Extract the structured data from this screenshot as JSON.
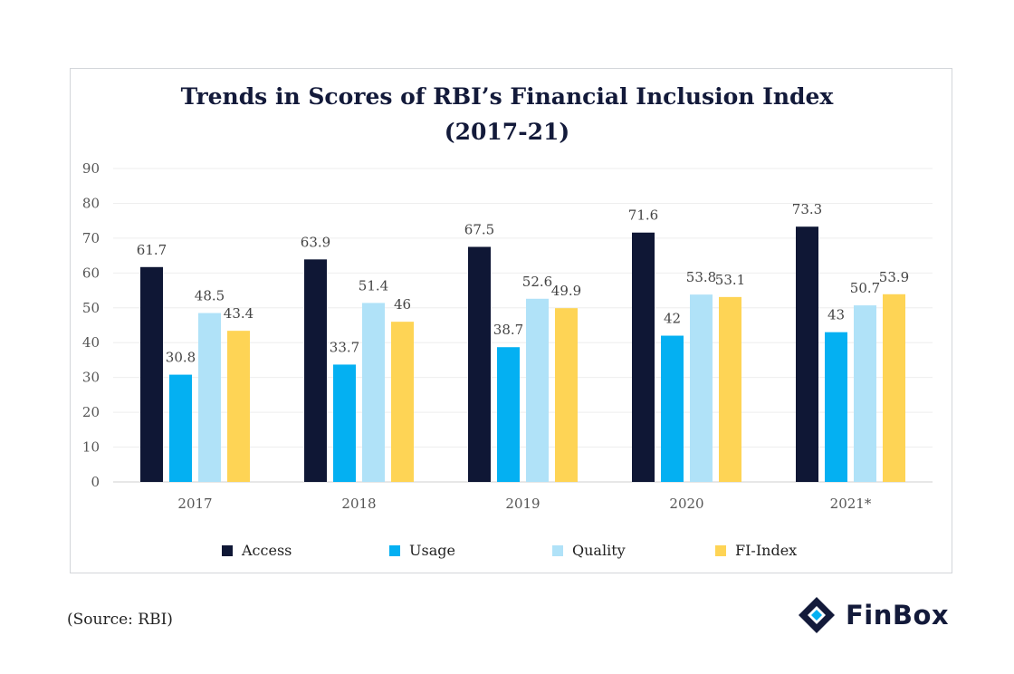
{
  "chart_data": {
    "type": "bar",
    "title": "Trends in Scores of RBI’s Financial Inclusion Index",
    "subtitle": "(2017-21)",
    "categories": [
      "2017",
      "2018",
      "2019",
      "2020",
      "2021*"
    ],
    "series": [
      {
        "name": "Access",
        "color": "#0f1735",
        "values": [
          61.7,
          63.9,
          67.5,
          71.6,
          73.3
        ]
      },
      {
        "name": "Usage",
        "color": "#04b0f2",
        "values": [
          30.8,
          33.7,
          38.7,
          42,
          43
        ]
      },
      {
        "name": "Quality",
        "color": "#b0e2f8",
        "values": [
          48.5,
          51.4,
          52.6,
          53.8,
          50.7
        ]
      },
      {
        "name": "FI-Index",
        "color": "#fed455",
        "values": [
          43.4,
          46,
          49.9,
          53.1,
          53.9
        ]
      }
    ],
    "ylim": [
      0,
      90
    ],
    "yticks": [
      0,
      10,
      20,
      30,
      40,
      50,
      60,
      70,
      80,
      90
    ],
    "grid": true,
    "legend_position": "bottom",
    "xlabel": "",
    "ylabel": ""
  },
  "source": "(Source: RBI)",
  "brand": {
    "name": "FinBox",
    "logo_icon": "finbox-logo-icon",
    "colors": [
      "#131a3a",
      "#04b0f2"
    ]
  }
}
